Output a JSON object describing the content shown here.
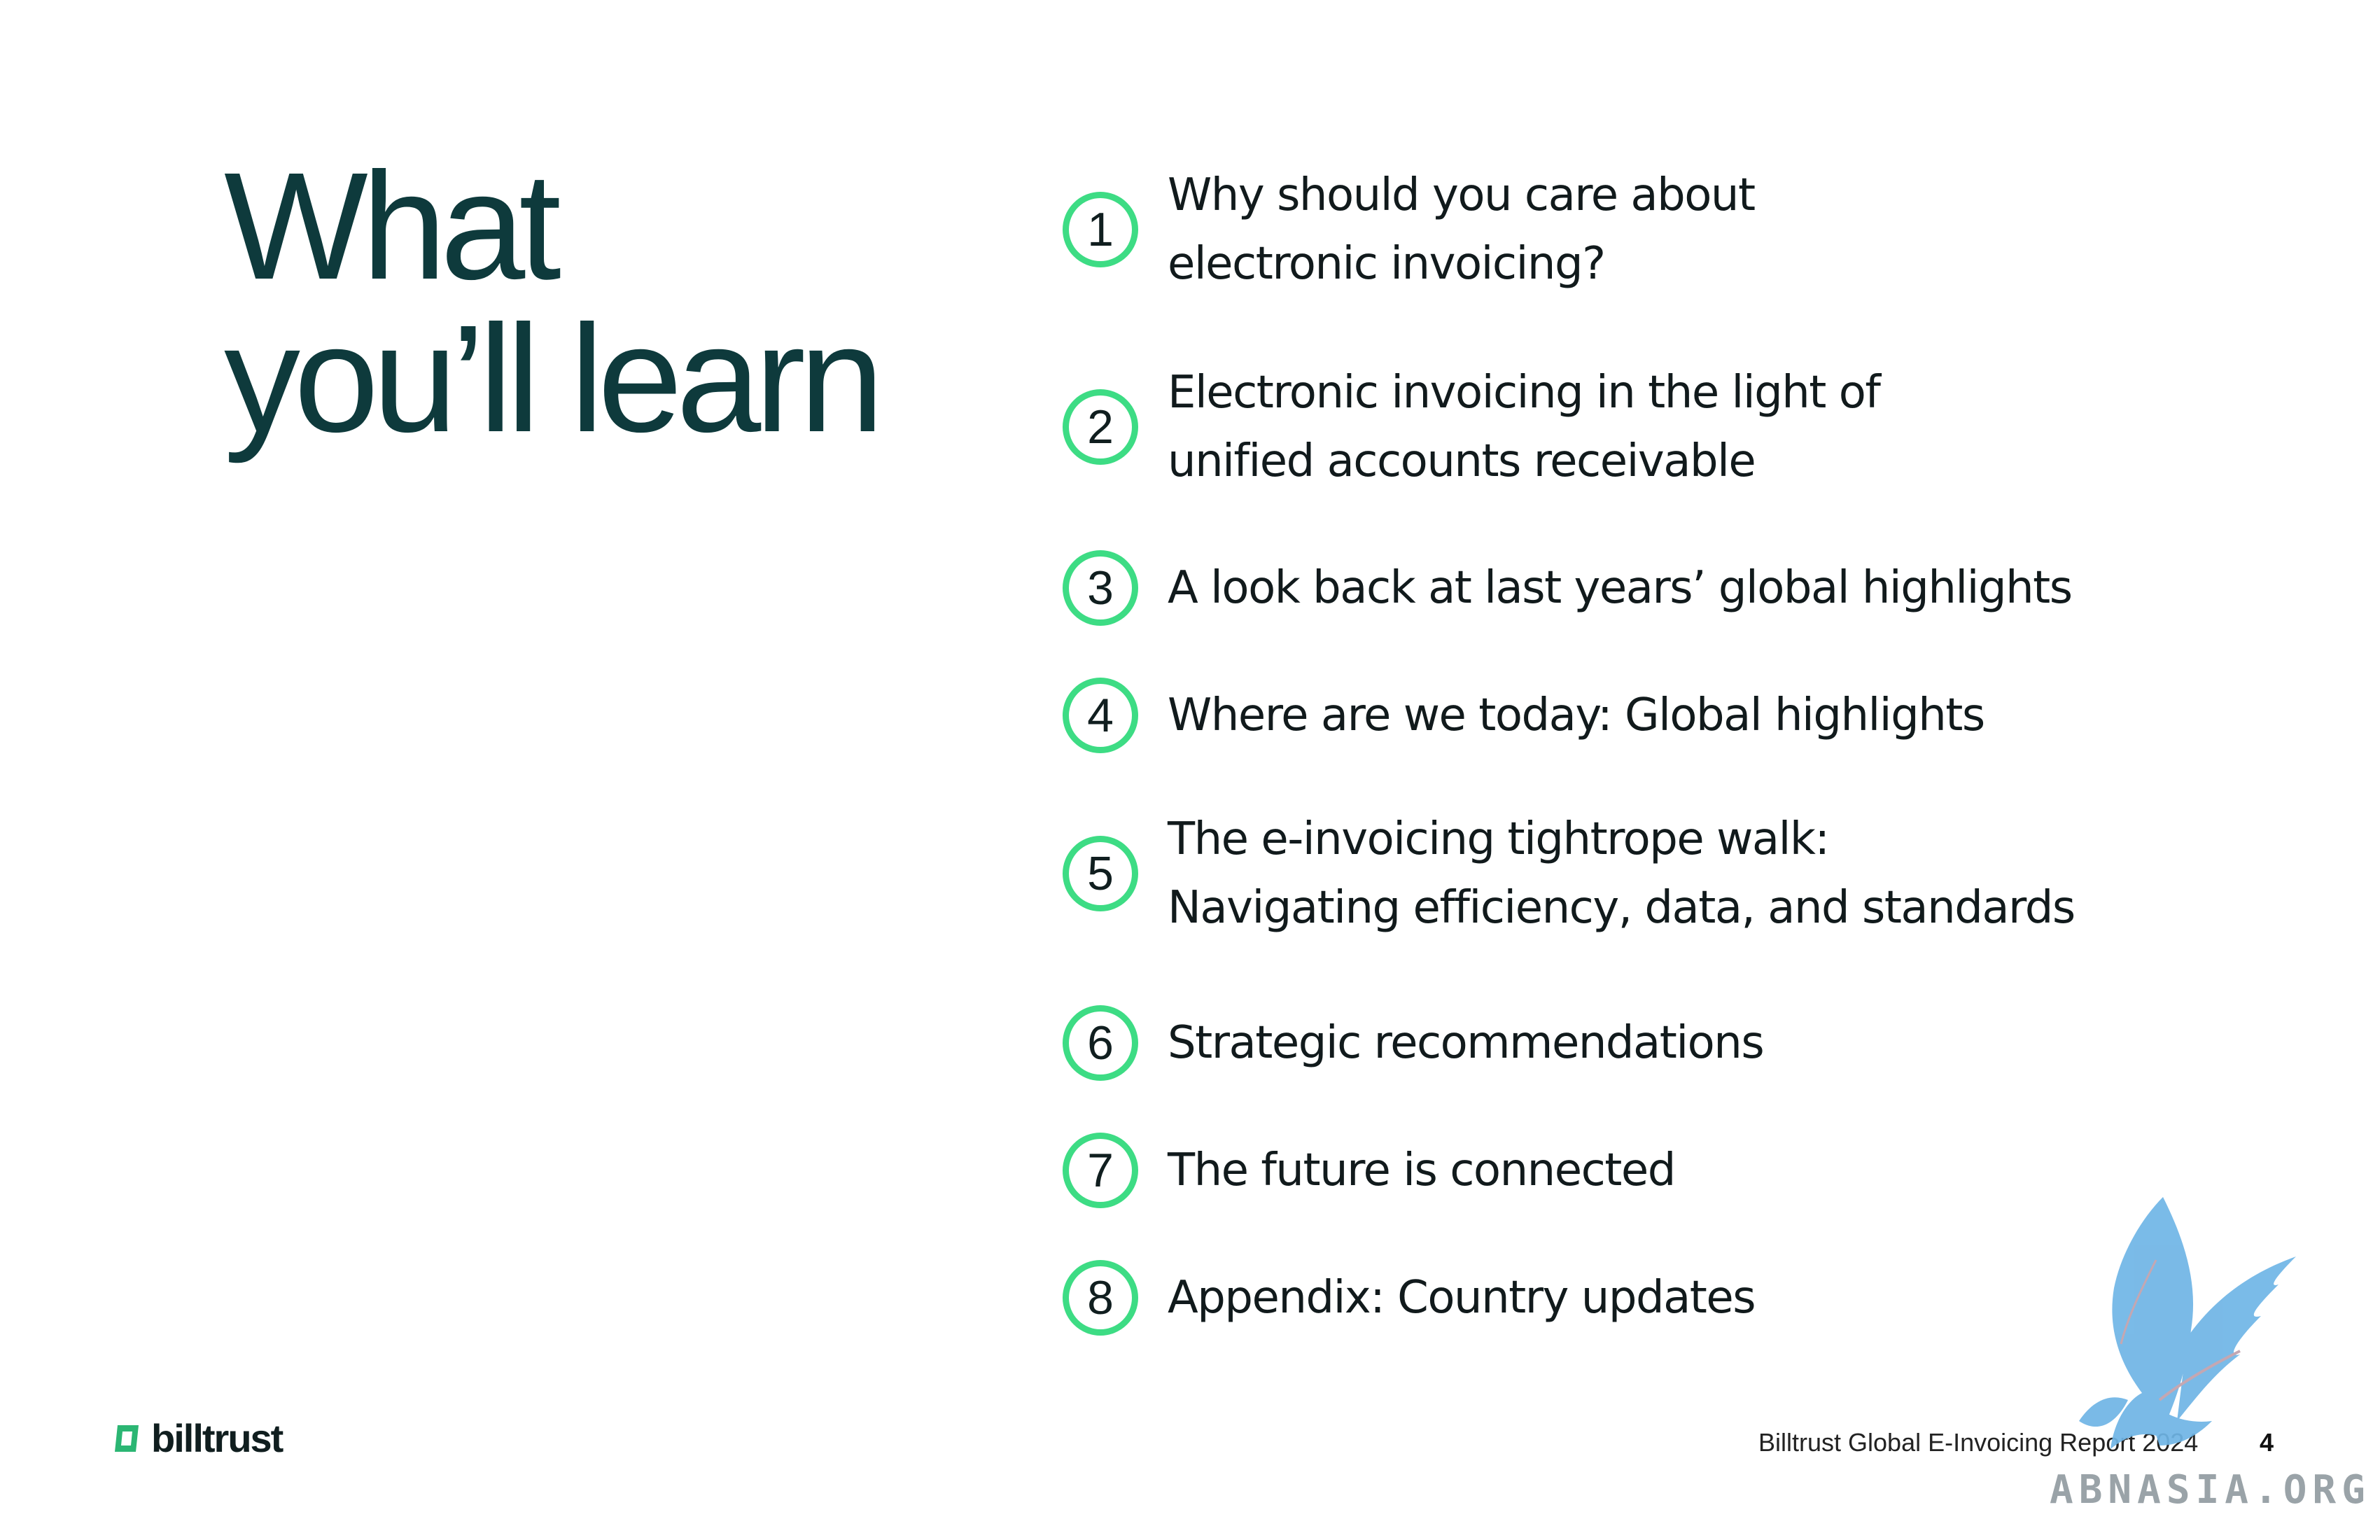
{
  "title": {
    "line1": "What",
    "line2": "you’ll learn"
  },
  "toc": [
    {
      "number": "1",
      "lines": [
        "Why should you care about",
        "electronic invoicing?"
      ]
    },
    {
      "number": "2",
      "lines": [
        "Electronic invoicing in the light of",
        "unified accounts receivable"
      ]
    },
    {
      "number": "3",
      "lines": [
        "A look back at last years’ global highlights"
      ]
    },
    {
      "number": "4",
      "lines": [
        "Where are we today: Global highlights"
      ]
    },
    {
      "number": "5",
      "lines": [
        "The e-invoicing tightrope walk:",
        "Navigating efficiency, data, and standards"
      ]
    },
    {
      "number": "6",
      "lines": [
        "Strategic recommendations"
      ]
    },
    {
      "number": "7",
      "lines": [
        "The future is connected"
      ]
    },
    {
      "number": "8",
      "lines": [
        "Appendix: Country updates"
      ]
    }
  ],
  "footer": {
    "logo_text": "billtrust",
    "report_name": "Billtrust Global E-Invoicing Report 2024",
    "page_number": "4"
  },
  "watermark": {
    "text": "ABNASIA.ORG"
  },
  "colors": {
    "accent": "#3ddc84",
    "title": "#0e3a3c",
    "logo_mark": "#2bb673",
    "watermark": "#6fb5e6"
  }
}
